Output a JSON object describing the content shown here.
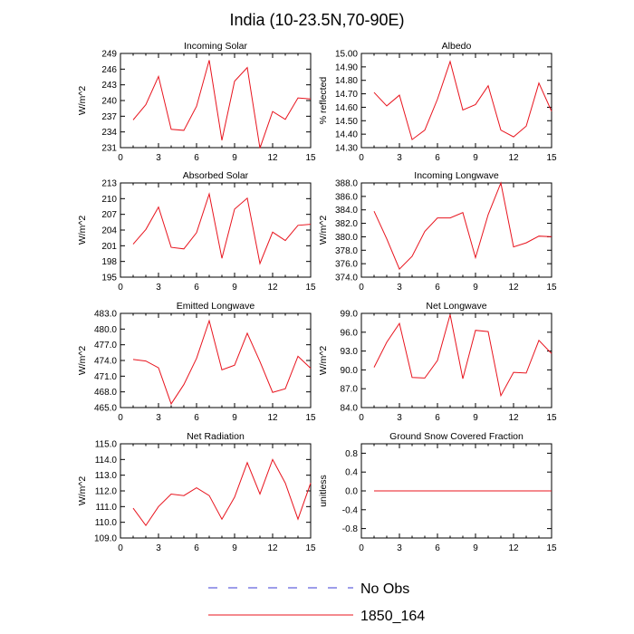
{
  "title": "India (10-23.5N,70-90E)",
  "colors": {
    "model": "#e8141e",
    "obs": "#3b3bd6",
    "axis": "#000000"
  },
  "legend": {
    "entries": [
      {
        "label": "No Obs",
        "style": "dashed",
        "color": "#3b3bd6"
      },
      {
        "label": "1850_164",
        "style": "solid",
        "color": "#e8141e"
      }
    ]
  },
  "chart_data": [
    {
      "type": "line",
      "title": "Incoming Solar",
      "ylabel": "W/m^2",
      "x": [
        1,
        2,
        3,
        4,
        5,
        6,
        7,
        8,
        9,
        10,
        11,
        12,
        13,
        14,
        15
      ],
      "xlim": [
        0,
        15
      ],
      "xticks": [
        "0",
        "3",
        "6",
        "9",
        "12",
        "15"
      ],
      "ylim": [
        231,
        249
      ],
      "yticks": [
        "231",
        "234",
        "237",
        "240",
        "243",
        "246",
        "249"
      ],
      "series": [
        {
          "values": [
            236.3,
            239.2,
            244.6,
            234.5,
            234.3,
            238.9,
            247.7,
            232.4,
            243.7,
            246.3,
            230.9,
            237.9,
            236.4,
            240.5,
            240.3
          ]
        }
      ]
    },
    {
      "type": "line",
      "title": "Albedo",
      "ylabel": "% reflected",
      "x": [
        1,
        2,
        3,
        4,
        5,
        6,
        7,
        8,
        9,
        10,
        11,
        12,
        13,
        14,
        15
      ],
      "xlim": [
        0,
        15
      ],
      "xticks": [
        "0",
        "3",
        "6",
        "9",
        "12",
        "15"
      ],
      "ylim": [
        14.3,
        15.0
      ],
      "yticks": [
        "14.30",
        "14.40",
        "14.50",
        "14.60",
        "14.70",
        "14.80",
        "14.90",
        "15.00"
      ],
      "series": [
        {
          "values": [
            14.71,
            14.61,
            14.69,
            14.36,
            14.43,
            14.66,
            14.94,
            14.58,
            14.62,
            14.76,
            14.43,
            14.38,
            14.46,
            14.78,
            14.57
          ]
        }
      ]
    },
    {
      "type": "line",
      "title": "Absorbed Solar",
      "ylabel": "W/m^2",
      "x": [
        1,
        2,
        3,
        4,
        5,
        6,
        7,
        8,
        9,
        10,
        11,
        12,
        13,
        14,
        15
      ],
      "xlim": [
        0,
        15
      ],
      "xticks": [
        "0",
        "3",
        "6",
        "9",
        "12",
        "15"
      ],
      "ylim": [
        195,
        213
      ],
      "yticks": [
        "195",
        "198",
        "201",
        "204",
        "207",
        "210",
        "213"
      ],
      "series": [
        {
          "values": [
            201.3,
            204.1,
            208.4,
            200.7,
            200.4,
            203.5,
            210.9,
            198.6,
            208.0,
            210.1,
            197.6,
            203.6,
            202.0,
            204.9,
            205.1
          ]
        }
      ]
    },
    {
      "type": "line",
      "title": "Incoming Longwave",
      "ylabel": "W/m^2",
      "x": [
        1,
        2,
        3,
        4,
        5,
        6,
        7,
        8,
        9,
        10,
        11,
        12,
        13,
        14,
        15
      ],
      "xlim": [
        0,
        15
      ],
      "xticks": [
        "0",
        "3",
        "6",
        "9",
        "12",
        "15"
      ],
      "ylim": [
        374.0,
        388.0
      ],
      "yticks": [
        "374.0",
        "376.0",
        "378.0",
        "380.0",
        "382.0",
        "384.0",
        "386.0",
        "388.0"
      ],
      "series": [
        {
          "values": [
            383.8,
            379.7,
            375.2,
            377.1,
            380.8,
            382.8,
            382.8,
            383.6,
            376.9,
            383.3,
            388.0,
            378.5,
            379.1,
            380.1,
            380.0
          ]
        }
      ]
    },
    {
      "type": "line",
      "title": "Emitted Longwave",
      "ylabel": "W/m^2",
      "x": [
        1,
        2,
        3,
        4,
        5,
        6,
        7,
        8,
        9,
        10,
        11,
        12,
        13,
        14,
        15
      ],
      "xlim": [
        0,
        15
      ],
      "xticks": [
        "0",
        "3",
        "6",
        "9",
        "12",
        "15"
      ],
      "ylim": [
        465.0,
        483.0
      ],
      "yticks": [
        "465.0",
        "468.0",
        "471.0",
        "474.0",
        "477.0",
        "480.0",
        "483.0"
      ],
      "series": [
        {
          "values": [
            474.2,
            473.9,
            472.6,
            465.7,
            469.4,
            474.4,
            481.6,
            472.2,
            473.1,
            479.2,
            473.8,
            467.9,
            468.6,
            474.8,
            472.5
          ]
        }
      ]
    },
    {
      "type": "line",
      "title": "Net Longwave",
      "ylabel": "W/m^2",
      "x": [
        1,
        2,
        3,
        4,
        5,
        6,
        7,
        8,
        9,
        10,
        11,
        12,
        13,
        14,
        15
      ],
      "xlim": [
        0,
        15
      ],
      "xticks": [
        "0",
        "3",
        "6",
        "9",
        "12",
        "15"
      ],
      "ylim": [
        84.0,
        99.0
      ],
      "yticks": [
        "84.0",
        "87.0",
        "90.0",
        "93.0",
        "96.0",
        "99.0"
      ],
      "series": [
        {
          "values": [
            90.4,
            94.4,
            97.4,
            88.8,
            88.7,
            91.5,
            98.8,
            88.6,
            96.3,
            96.1,
            85.9,
            89.6,
            89.5,
            94.7,
            92.6
          ]
        }
      ]
    },
    {
      "type": "line",
      "title": "Net Radiation",
      "ylabel": "W/m^2",
      "x": [
        1,
        2,
        3,
        4,
        5,
        6,
        7,
        8,
        9,
        10,
        11,
        12,
        13,
        14,
        15
      ],
      "xlim": [
        0,
        15
      ],
      "xticks": [
        "0",
        "3",
        "6",
        "9",
        "12",
        "15"
      ],
      "ylim": [
        109.0,
        115.0
      ],
      "yticks": [
        "109.0",
        "110.0",
        "111.0",
        "112.0",
        "113.0",
        "114.0",
        "115.0"
      ],
      "series": [
        {
          "values": [
            110.9,
            109.8,
            111.0,
            111.8,
            111.7,
            112.2,
            111.7,
            110.2,
            111.6,
            113.8,
            111.8,
            114.0,
            112.5,
            110.2,
            112.5
          ]
        }
      ]
    },
    {
      "type": "line",
      "title": "Ground Snow Covered Fraction",
      "ylabel": "unitless",
      "x": [
        1,
        2,
        3,
        4,
        5,
        6,
        7,
        8,
        9,
        10,
        11,
        12,
        13,
        14,
        15
      ],
      "xlim": [
        0,
        15
      ],
      "xticks": [
        "0",
        "3",
        "6",
        "9",
        "12",
        "15"
      ],
      "ylim": [
        -1.0,
        1.0
      ],
      "yticks": [
        "-0.8",
        "-0.4",
        "0.0",
        "0.4",
        "0.8"
      ],
      "ytick_values": [
        -0.8,
        -0.4,
        0.0,
        0.4,
        0.8
      ],
      "series": [
        {
          "values": [
            0,
            0,
            0,
            0,
            0,
            0,
            0,
            0,
            0,
            0,
            0,
            0,
            0,
            0,
            0
          ]
        }
      ]
    }
  ]
}
